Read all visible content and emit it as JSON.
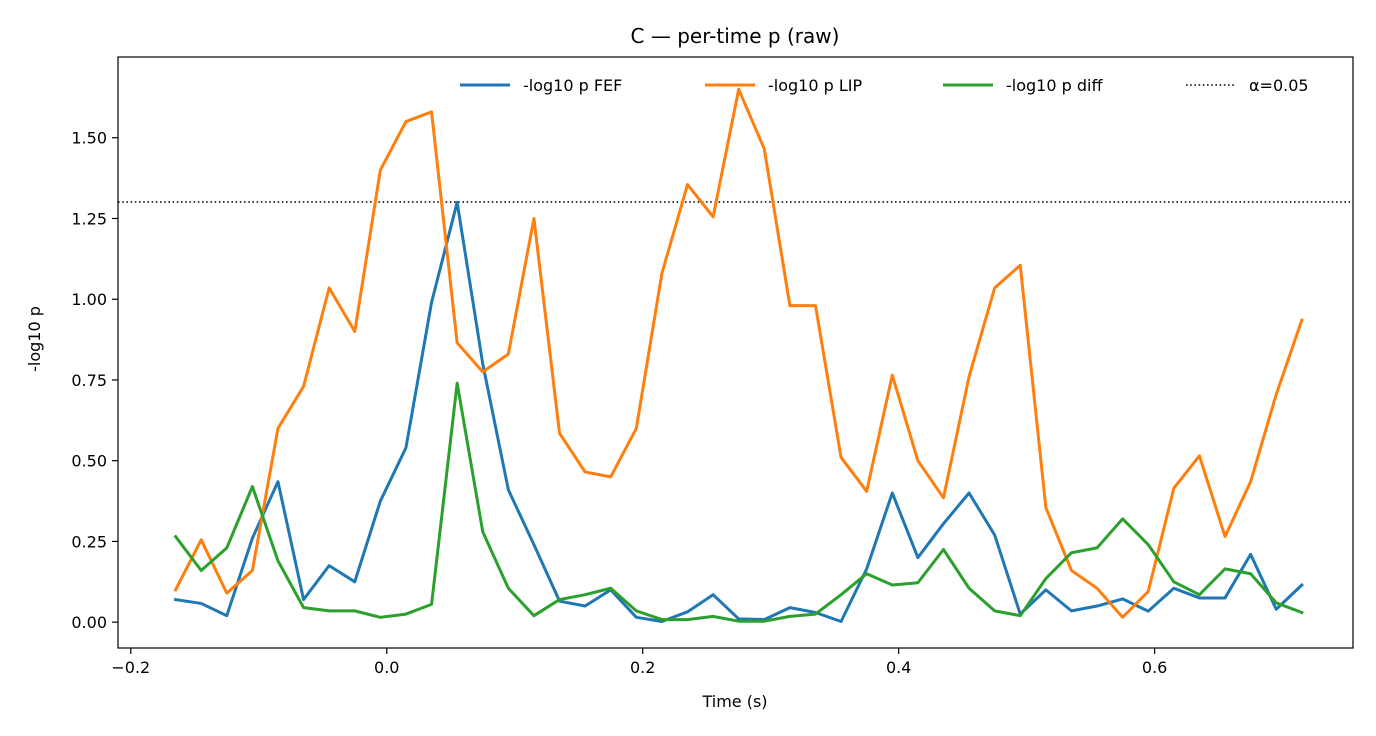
{
  "chart_data": {
    "type": "line",
    "title": "C — per-time p (raw)",
    "xlabel": "Time (s)",
    "ylabel": "-log10 p",
    "xlim": [
      -0.21,
      0.755
    ],
    "ylim": [
      -0.08,
      1.75
    ],
    "xticks": [
      -0.2,
      0.0,
      0.2,
      0.4,
      0.6
    ],
    "xtick_labels": [
      "−0.2",
      "0.0",
      "0.2",
      "0.4",
      "0.6"
    ],
    "yticks": [
      0.0,
      0.25,
      0.5,
      0.75,
      1.0,
      1.25,
      1.5
    ],
    "ytick_labels": [
      "0.00",
      "0.25",
      "0.50",
      "0.75",
      "1.00",
      "1.25",
      "1.50"
    ],
    "grid": false,
    "legend_position": "top-right",
    "x": [
      -0.165,
      -0.145,
      -0.125,
      -0.105,
      -0.085,
      -0.065,
      -0.045,
      -0.025,
      -0.005,
      0.015,
      0.035,
      0.055,
      0.075,
      0.095,
      0.115,
      0.135,
      0.155,
      0.175,
      0.195,
      0.215,
      0.235,
      0.255,
      0.275,
      0.295,
      0.315,
      0.335,
      0.355,
      0.375,
      0.395,
      0.415,
      0.435,
      0.455,
      0.475,
      0.495,
      0.515,
      0.535,
      0.555,
      0.575,
      0.595,
      0.615,
      0.635,
      0.655,
      0.675,
      0.695,
      0.715
    ],
    "series": [
      {
        "name": "-log10 p FEF",
        "color": "#1f77b4",
        "style": "solid",
        "values": [
          0.07,
          0.058,
          0.02,
          0.26,
          0.435,
          0.07,
          0.175,
          0.125,
          0.375,
          0.54,
          0.99,
          1.3,
          0.8,
          0.41,
          0.24,
          0.065,
          0.05,
          0.1,
          0.015,
          0.002,
          0.032,
          0.085,
          0.01,
          0.008,
          0.045,
          0.03,
          0.002,
          0.165,
          0.4,
          0.2,
          0.305,
          0.4,
          0.27,
          0.025,
          0.1,
          0.035,
          0.05,
          0.072,
          0.034,
          0.105,
          0.075,
          0.075,
          0.21,
          0.04,
          0.115
        ]
      },
      {
        "name": "-log10 p LIP",
        "color": "#ff7f0e",
        "style": "solid",
        "values": [
          0.1,
          0.255,
          0.09,
          0.16,
          0.6,
          0.73,
          1.035,
          0.9,
          1.4,
          1.55,
          1.58,
          0.865,
          0.775,
          0.83,
          1.25,
          0.585,
          0.465,
          0.45,
          0.6,
          1.08,
          1.355,
          1.255,
          1.65,
          1.465,
          0.98,
          0.98,
          0.51,
          0.405,
          0.765,
          0.5,
          0.385,
          0.76,
          1.035,
          1.105,
          0.355,
          0.16,
          0.105,
          0.015,
          0.095,
          0.415,
          0.515,
          0.265,
          0.435,
          0.705,
          0.935
        ]
      },
      {
        "name": "-log10 p diff",
        "color": "#2ca02c",
        "style": "solid",
        "values": [
          0.265,
          0.16,
          0.23,
          0.42,
          0.19,
          0.045,
          0.035,
          0.035,
          0.015,
          0.025,
          0.055,
          0.74,
          0.28,
          0.105,
          0.02,
          0.07,
          0.085,
          0.105,
          0.035,
          0.008,
          0.008,
          0.018,
          0.003,
          0.003,
          0.018,
          0.025,
          0.085,
          0.15,
          0.115,
          0.122,
          0.225,
          0.105,
          0.035,
          0.02,
          0.135,
          0.215,
          0.23,
          0.32,
          0.24,
          0.125,
          0.085,
          0.165,
          0.15,
          0.06,
          0.03
        ]
      }
    ],
    "reference_line": {
      "name": "α=0.05",
      "y": 1.30103,
      "color": "#000000",
      "style": "dotted"
    }
  }
}
